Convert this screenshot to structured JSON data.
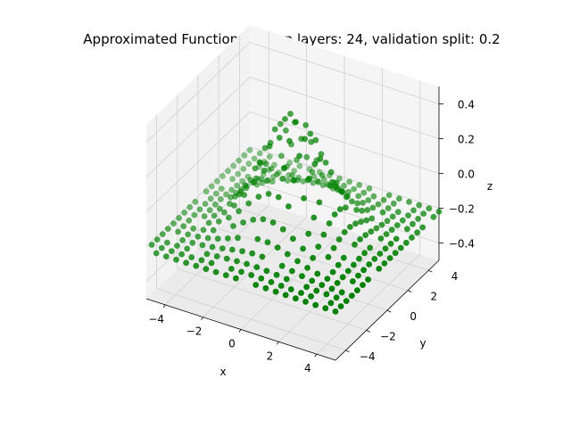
{
  "chart_data": {
    "type": "scatter",
    "subtype": "3d-scatter",
    "title": "Approximated Function, hidden layers: 24, validation split: 0.2",
    "xlabel": "x",
    "ylabel": "y",
    "zlabel": "z",
    "xlim": [
      -5,
      5
    ],
    "ylim": [
      -5,
      5
    ],
    "zlim": [
      -0.5,
      0.5
    ],
    "xticks": [
      "−4",
      "−2",
      "0",
      "2",
      "4"
    ],
    "yticks": [
      "−4",
      "−2",
      "0",
      "2",
      "4"
    ],
    "zticks": [
      "−0.4",
      "−0.2",
      "0.0",
      "0.2",
      "0.4"
    ],
    "grid": true,
    "marker_color": "#008000",
    "sampling": "approximately 400 points on a regular grid over x,y in [-5, 5]",
    "description_values": "z peaks near 0.45 at the origin, falls to about -0.2 at radius ~5 and is roughly flat (~-0.2) toward the domain edges"
  }
}
